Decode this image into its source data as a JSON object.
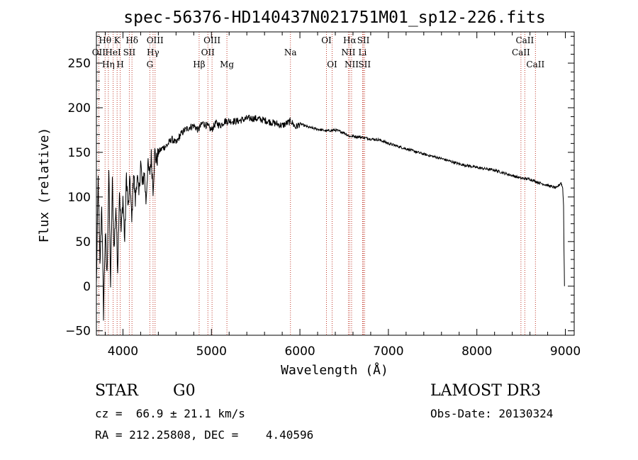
{
  "chart_data": {
    "type": "line",
    "title": "spec-56376-HD140437N021751M01_sp12-226.fits",
    "xlabel": "Wavelength (Å)",
    "ylabel": "Flux (relative)",
    "xlim": [
      3700,
      9100
    ],
    "ylim": [
      -55,
      285
    ],
    "xticks": [
      4000,
      5000,
      6000,
      7000,
      8000,
      9000
    ],
    "yticks": [
      -50,
      0,
      50,
      100,
      150,
      200,
      250
    ],
    "spectrum": {
      "wavelength": [
        3700,
        3720,
        3740,
        3760,
        3780,
        3800,
        3820,
        3840,
        3860,
        3880,
        3900,
        3920,
        3940,
        3960,
        3980,
        4000,
        4020,
        4040,
        4060,
        4080,
        4100,
        4120,
        4140,
        4160,
        4180,
        4200,
        4220,
        4240,
        4260,
        4280,
        4300,
        4320,
        4340,
        4360,
        4380,
        4400,
        4450,
        4500,
        4550,
        4600,
        4650,
        4700,
        4750,
        4800,
        4850,
        4900,
        4950,
        5000,
        5050,
        5100,
        5150,
        5200,
        5300,
        5400,
        5500,
        5600,
        5700,
        5800,
        5900,
        5950,
        6000,
        6100,
        6200,
        6300,
        6400,
        6500,
        6560,
        6600,
        6700,
        6800,
        6900,
        7000,
        7200,
        7400,
        7600,
        7800,
        8000,
        8200,
        8400,
        8500,
        8600,
        8700,
        8800,
        8900,
        8950,
        8970,
        8980,
        8985,
        8990
      ],
      "flux": [
        0,
        120,
        20,
        95,
        -30,
        60,
        10,
        130,
        0,
        115,
        40,
        90,
        20,
        110,
        60,
        100,
        50,
        125,
        85,
        120,
        70,
        130,
        95,
        125,
        100,
        140,
        110,
        130,
        95,
        135,
        125,
        145,
        110,
        150,
        140,
        150,
        155,
        158,
        165,
        160,
        170,
        175,
        178,
        180,
        175,
        183,
        180,
        175,
        183,
        180,
        185,
        185,
        185,
        188,
        188,
        186,
        183,
        180,
        185,
        178,
        182,
        178,
        176,
        174,
        175,
        172,
        168,
        168,
        167,
        165,
        164,
        160,
        154,
        148,
        143,
        137,
        133,
        130,
        124,
        121,
        120,
        116,
        113,
        110,
        116,
        110,
        90,
        40,
        0
      ]
    },
    "line_markers": [
      {
        "label": "Hθ",
        "wavelength": 3798,
        "row": 1
      },
      {
        "label": "OII",
        "wavelength": 3727,
        "row": 2
      },
      {
        "label": "HeI",
        "wavelength": 3889,
        "row": 2
      },
      {
        "label": "Hη",
        "wavelength": 3835,
        "row": 3
      },
      {
        "label": "K",
        "wavelength": 3934,
        "row": 1
      },
      {
        "label": "SII",
        "wavelength": 4072,
        "row": 2
      },
      {
        "label": "H",
        "wavelength": 3969,
        "row": 3
      },
      {
        "label": "Hδ",
        "wavelength": 4102,
        "row": 1
      },
      {
        "label": "OIII",
        "wavelength": 4363,
        "row": 1
      },
      {
        "label": "Hγ",
        "wavelength": 4340,
        "row": 2
      },
      {
        "label": "G",
        "wavelength": 4304,
        "row": 3
      },
      {
        "label": "OIII",
        "wavelength": 5007,
        "row": 1
      },
      {
        "label": "OII",
        "wavelength": 4960,
        "row": 2
      },
      {
        "label": "Hβ",
        "wavelength": 4861,
        "row": 3
      },
      {
        "label": "Mg",
        "wavelength": 5175,
        "row": 3
      },
      {
        "label": "Na",
        "wavelength": 5893,
        "row": 2
      },
      {
        "label": "OI",
        "wavelength": 6300,
        "row": 1
      },
      {
        "label": "OI",
        "wavelength": 6364,
        "row": 3
      },
      {
        "label": "Hα",
        "wavelength": 6563,
        "row": 1
      },
      {
        "label": "NII",
        "wavelength": 6548,
        "row": 2
      },
      {
        "label": "NII",
        "wavelength": 6584,
        "row": 3
      },
      {
        "label": "SII",
        "wavelength": 6717,
        "row": 1
      },
      {
        "label": "Li",
        "wavelength": 6708,
        "row": 2
      },
      {
        "label": "SII",
        "wavelength": 6731,
        "row": 3
      },
      {
        "label": "CaII",
        "wavelength": 8542,
        "row": 1
      },
      {
        "label": "CaII",
        "wavelength": 8498,
        "row": 2
      },
      {
        "label": "CaII",
        "wavelength": 8662,
        "row": 3
      }
    ]
  },
  "info": {
    "class_label": "STAR",
    "subclass": "G0",
    "survey": "LAMOST DR3",
    "redshift": "cz =  66.9 ± 21.1 km/s",
    "obs_date": "Obs-Date: 20130324",
    "coords": "RA = 212.25808, DEC =    4.40596"
  }
}
